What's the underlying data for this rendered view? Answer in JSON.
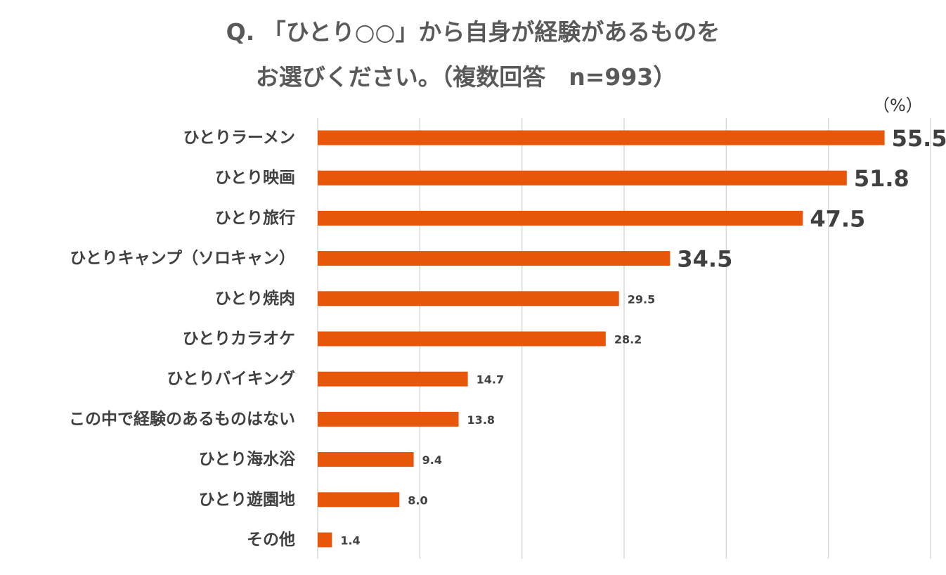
{
  "title": {
    "line1": "Q. 「ひとり○○」から自身が経験があるものを",
    "line2": "お選びください。（複数回答　n=993）"
  },
  "unit_label": "（%）",
  "colors": {
    "bar": "#E8560A",
    "grid": "#D9D9D9",
    "text": "#404040"
  },
  "chart_data": {
    "type": "bar",
    "orientation": "horizontal",
    "categories": [
      "ひとりラーメン",
      "ひとり映画",
      "ひとり旅行",
      "ひとりキャンプ（ソロキャン）",
      "ひとり焼肉",
      "ひとりカラオケ",
      "ひとりバイキング",
      "この中で経験のあるものはない",
      "ひとり海水浴",
      "ひとり遊園地",
      "その他"
    ],
    "values": [
      55.5,
      51.8,
      47.5,
      34.5,
      29.5,
      28.2,
      14.7,
      13.8,
      9.4,
      8.0,
      1.4
    ],
    "value_labels": [
      "55.5",
      "51.8",
      "47.5",
      "34.5",
      "29.5",
      "28.2",
      "14.7",
      "13.8",
      "9.4",
      "8.0",
      "1.4"
    ],
    "xlim": [
      0,
      60
    ],
    "grid": true,
    "legend": "none"
  }
}
